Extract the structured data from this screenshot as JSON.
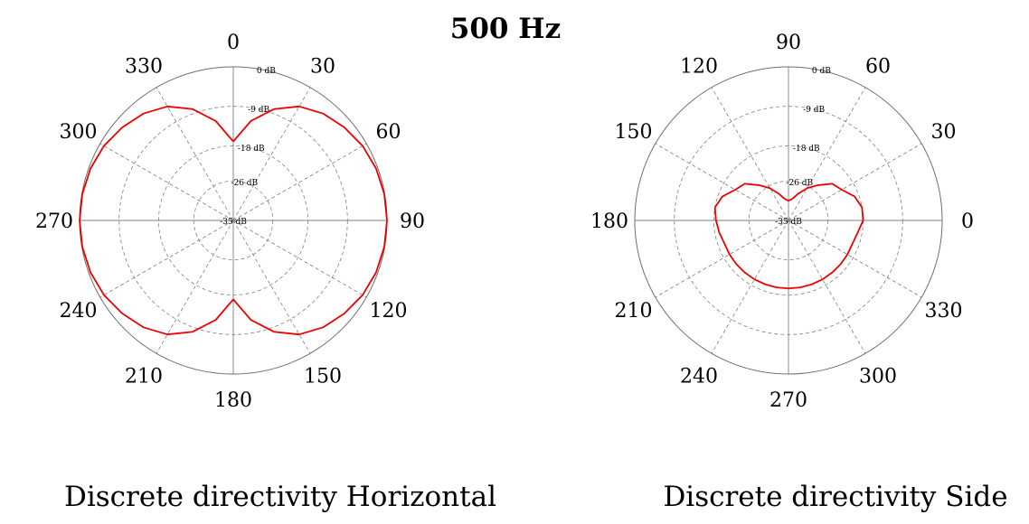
{
  "title": "500 Hz",
  "colors": {
    "curve": "#ee0000",
    "grid": "#808080",
    "outer": "#6f6f6f"
  },
  "chart_data": [
    {
      "type": "polar-line",
      "title": "Discrete directivity Horizontal",
      "theta_zero": "top",
      "theta_direction": "clockwise",
      "r_min_db": -35,
      "r_max_db": 0,
      "ring_labels": [
        "0 dB",
        "-9 dB",
        "-18 dB",
        "-26 dB",
        "-35 dB"
      ],
      "ring_values_db": [
        0,
        -9,
        -18,
        -26,
        -35
      ],
      "angle_labels": [
        "0",
        "30",
        "60",
        "90",
        "120",
        "150",
        "180",
        "210",
        "240",
        "270",
        "300",
        "330"
      ],
      "series": [
        {
          "name": "Horizontal",
          "theta_deg": [
            0,
            10,
            20,
            30,
            40,
            50,
            60,
            70,
            80,
            90,
            100,
            110,
            120,
            130,
            140,
            150,
            160,
            170,
            180,
            190,
            200,
            210,
            220,
            230,
            240,
            250,
            260,
            270,
            280,
            290,
            300,
            310,
            320,
            330,
            340,
            350,
            360
          ],
          "r_db": [
            -17,
            -12,
            -8,
            -5,
            -3.2,
            -2,
            -1,
            -0.4,
            -0.1,
            0,
            -0.1,
            -0.4,
            -1,
            -2,
            -3.2,
            -5,
            -8,
            -12,
            -17,
            -12,
            -8,
            -5,
            -3.2,
            -2,
            -1,
            -0.4,
            -0.1,
            0,
            -0.1,
            -0.4,
            -1,
            -2,
            -3.2,
            -5,
            -8,
            -12,
            -17
          ]
        }
      ]
    },
    {
      "type": "polar-line",
      "title": "Discrete directivity Side",
      "theta_zero": "right",
      "theta_direction": "counterclockwise",
      "r_min_db": -35,
      "r_max_db": 0,
      "ring_labels": [
        "0 dB",
        "-9 dB",
        "-18 dB",
        "-26 dB",
        "-35 dB"
      ],
      "ring_values_db": [
        0,
        -9,
        -18,
        -26,
        -35
      ],
      "angle_labels": [
        "0",
        "30",
        "60",
        "90",
        "120",
        "150",
        "180",
        "210",
        "240",
        "270",
        "300",
        "330"
      ],
      "series": [
        {
          "name": "Side",
          "theta_deg": [
            0,
            10,
            20,
            30,
            40,
            50,
            60,
            70,
            80,
            90,
            100,
            110,
            120,
            130,
            140,
            150,
            160,
            170,
            180,
            190,
            200,
            210,
            220,
            230,
            240,
            250,
            260,
            270,
            280,
            290,
            300,
            310,
            320,
            330,
            340,
            350,
            360
          ],
          "r_db": [
            -18,
            -18,
            -19,
            -21,
            -22,
            -24.5,
            -26.5,
            -28.5,
            -30,
            -30.5,
            -30,
            -28.5,
            -26.5,
            -24.5,
            -22,
            -21,
            -19,
            -18,
            -18.5,
            -19,
            -19.5,
            -19.5,
            -19.5,
            -19.5,
            -19.5,
            -19.5,
            -19.5,
            -19.5,
            -19.5,
            -19.5,
            -19.5,
            -19.5,
            -19.5,
            -19.5,
            -19.5,
            -19,
            -18
          ]
        }
      ]
    }
  ]
}
